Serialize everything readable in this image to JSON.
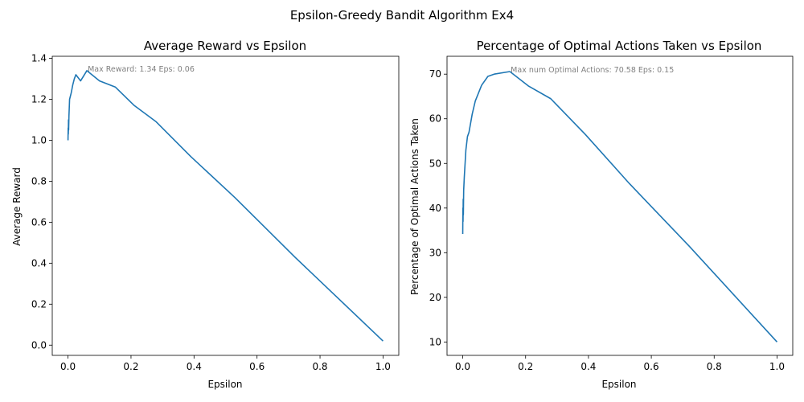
{
  "figure": {
    "suptitle": "Epsilon-Greedy Bandit Algorithm Ex4"
  },
  "colors": {
    "line": "#1f77b4",
    "annotation": "#808080",
    "axes": "#000000"
  },
  "chart_data": [
    {
      "type": "line",
      "title": "Average Reward vs Epsilon",
      "xlabel": "Epsilon",
      "ylabel": "Average Reward",
      "xlim": [
        -0.05,
        1.05
      ],
      "ylim": [
        -0.05,
        1.41
      ],
      "xticks": [
        0.0,
        0.2,
        0.4,
        0.6,
        0.8,
        1.0
      ],
      "xtick_labels": [
        "0.0",
        "0.2",
        "0.4",
        "0.6",
        "0.8",
        "1.0"
      ],
      "yticks": [
        0.0,
        0.2,
        0.4,
        0.6,
        0.8,
        1.0,
        1.2,
        1.4
      ],
      "ytick_labels": [
        "0.0",
        "0.2",
        "0.4",
        "0.6",
        "0.8",
        "1.0",
        "1.2",
        "1.4"
      ],
      "grid": false,
      "annotation": {
        "text": "Max Reward: 1.34 Eps: 0.06",
        "x": 0.06,
        "y": 1.34
      },
      "series": [
        {
          "x": [
            0.0,
            0.0005,
            0.001,
            0.0015,
            0.002,
            0.003,
            0.005,
            0.01,
            0.015,
            0.02,
            0.025,
            0.03,
            0.04,
            0.06,
            0.1,
            0.15,
            0.21,
            0.28,
            0.39,
            0.53,
            0.72,
            1.0
          ],
          "y": [
            1.0,
            1.06,
            1.03,
            1.1,
            1.05,
            1.12,
            1.2,
            1.23,
            1.27,
            1.3,
            1.32,
            1.31,
            1.29,
            1.34,
            1.29,
            1.26,
            1.17,
            1.09,
            0.92,
            0.72,
            0.43,
            0.02
          ]
        }
      ]
    },
    {
      "type": "line",
      "title": "Percentage of Optimal Actions Taken vs Epsilon",
      "xlabel": "Epsilon",
      "ylabel": "Percentage of Optimal Actions Taken",
      "xlim": [
        -0.05,
        1.05
      ],
      "ylim": [
        7.0,
        74.0
      ],
      "xticks": [
        0.0,
        0.2,
        0.4,
        0.6,
        0.8,
        1.0
      ],
      "xtick_labels": [
        "0.0",
        "0.2",
        "0.4",
        "0.6",
        "0.8",
        "1.0"
      ],
      "yticks": [
        10,
        20,
        30,
        40,
        50,
        60,
        70
      ],
      "ytick_labels": [
        "10",
        "20",
        "30",
        "40",
        "50",
        "60",
        "70"
      ],
      "grid": false,
      "annotation": {
        "text": "Max num Optimal Actions: 70.58 Eps: 0.15",
        "x": 0.15,
        "y": 70.58
      },
      "series": [
        {
          "x": [
            0.0,
            0.0005,
            0.001,
            0.0015,
            0.002,
            0.003,
            0.005,
            0.01,
            0.015,
            0.02,
            0.03,
            0.04,
            0.06,
            0.08,
            0.1,
            0.15,
            0.21,
            0.28,
            0.39,
            0.53,
            0.72,
            1.0
          ],
          "y": [
            34.2,
            40.0,
            37.0,
            42.0,
            38.5,
            44.0,
            47.0,
            53.0,
            56.0,
            57.0,
            61.0,
            64.0,
            67.5,
            69.5,
            70.0,
            70.58,
            67.3,
            64.5,
            56.5,
            45.5,
            31.5,
            10.0
          ]
        }
      ]
    }
  ]
}
